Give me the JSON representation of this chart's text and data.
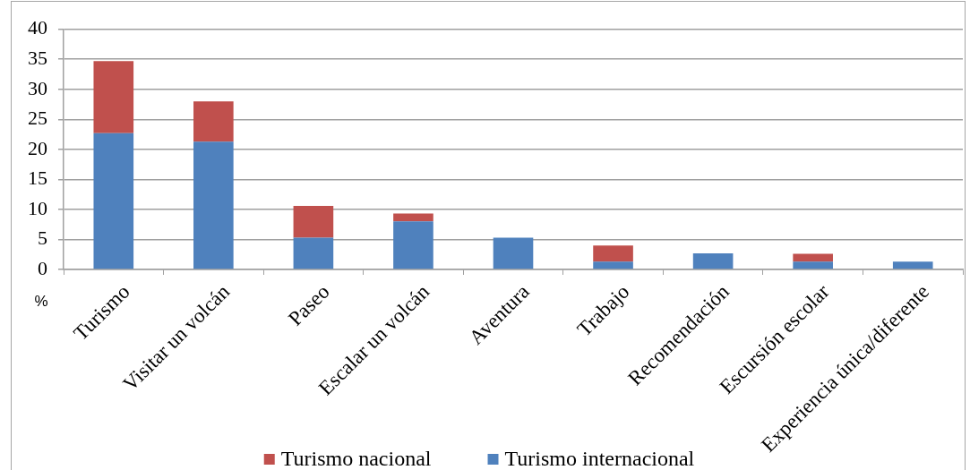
{
  "chart_data": {
    "type": "bar",
    "stacked": true,
    "ylabel": "%",
    "categories": [
      "Turismo",
      "Visitar un volcán",
      "Paseo",
      "Escalar un volcán",
      "Aventura",
      "Trabajo",
      "Recomendación",
      "Escursión escolar",
      "Experiencia única/diferente"
    ],
    "series": [
      {
        "name": "Turismo internacional",
        "color": "#4f81bd",
        "values": [
          22.7,
          21.3,
          5.3,
          8,
          5.3,
          1.3,
          2.7,
          1.3,
          1.3
        ]
      },
      {
        "name": "Turismo nacional",
        "color": "#c0504d",
        "values": [
          12,
          6.7,
          5.3,
          1.3,
          null,
          2.7,
          null,
          1.3,
          null
        ]
      }
    ],
    "ylim": [
      0,
      40
    ],
    "yticks": [
      0,
      5,
      10,
      15,
      20,
      25,
      30,
      35,
      40
    ],
    "grid": "y",
    "legend": "bottom"
  }
}
